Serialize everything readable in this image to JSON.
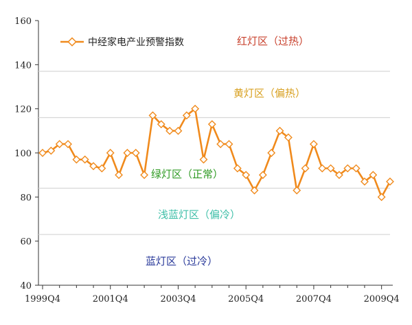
{
  "chart_data": {
    "type": "line",
    "ylim": [
      40,
      160
    ],
    "yticks": [
      40,
      60,
      80,
      100,
      120,
      140,
      160
    ],
    "x_tick_labels": [
      "1999Q4",
      "2001Q4",
      "2003Q4",
      "2005Q4",
      "2007Q4",
      "2009Q4"
    ],
    "x_tick_index": [
      0,
      8,
      16,
      24,
      32,
      40
    ],
    "thresholds": [
      137,
      116,
      84,
      63
    ],
    "grid": false,
    "legend_placement": "top-left",
    "series": [
      {
        "name": "中经家电产业预警指数",
        "color": "#f08a1c",
        "values": [
          100,
          101,
          104,
          104,
          97,
          97,
          94,
          93,
          100,
          90,
          100,
          100,
          90,
          117,
          113,
          110,
          110,
          117,
          120,
          97,
          113,
          104,
          104,
          93,
          90,
          83,
          90,
          100,
          110,
          107,
          83,
          93,
          104,
          93,
          93,
          90,
          93,
          93,
          87,
          90,
          80,
          87
        ]
      }
    ],
    "zones": [
      {
        "label": "红灯区（过热）",
        "color": "#c8402c"
      },
      {
        "label": "黄灯区（偏热）",
        "color": "#d8a020"
      },
      {
        "label": "绿灯区（正常）",
        "color": "#2e9a22"
      },
      {
        "label": "浅蓝灯区（偏冷）",
        "color": "#3fbfa8"
      },
      {
        "label": "蓝灯区（过冷）",
        "color": "#2a3a9a"
      }
    ]
  }
}
